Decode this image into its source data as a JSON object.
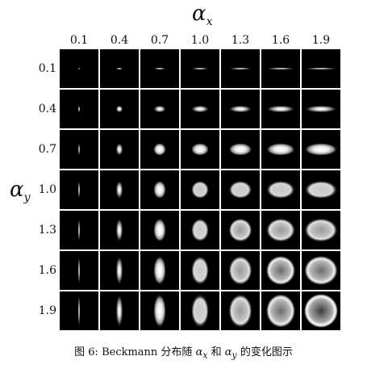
{
  "figure": {
    "x_axis_symbol": "α",
    "x_axis_subscript": "x",
    "y_axis_symbol": "α",
    "y_axis_subscript": "y",
    "column_labels": [
      "0.1",
      "0.4",
      "0.7",
      "1.0",
      "1.3",
      "1.6",
      "1.9"
    ],
    "row_labels": [
      "0.1",
      "0.4",
      "0.7",
      "1.0",
      "1.3",
      "1.6",
      "1.9"
    ],
    "caption_prefix": "图 6: Beckmann 分布随",
    "caption_ax": "α",
    "caption_ax_sub": "x",
    "caption_and": "和",
    "caption_ay": "α",
    "caption_ay_sub": "y",
    "caption_suffix": "的变化图示"
  }
}
